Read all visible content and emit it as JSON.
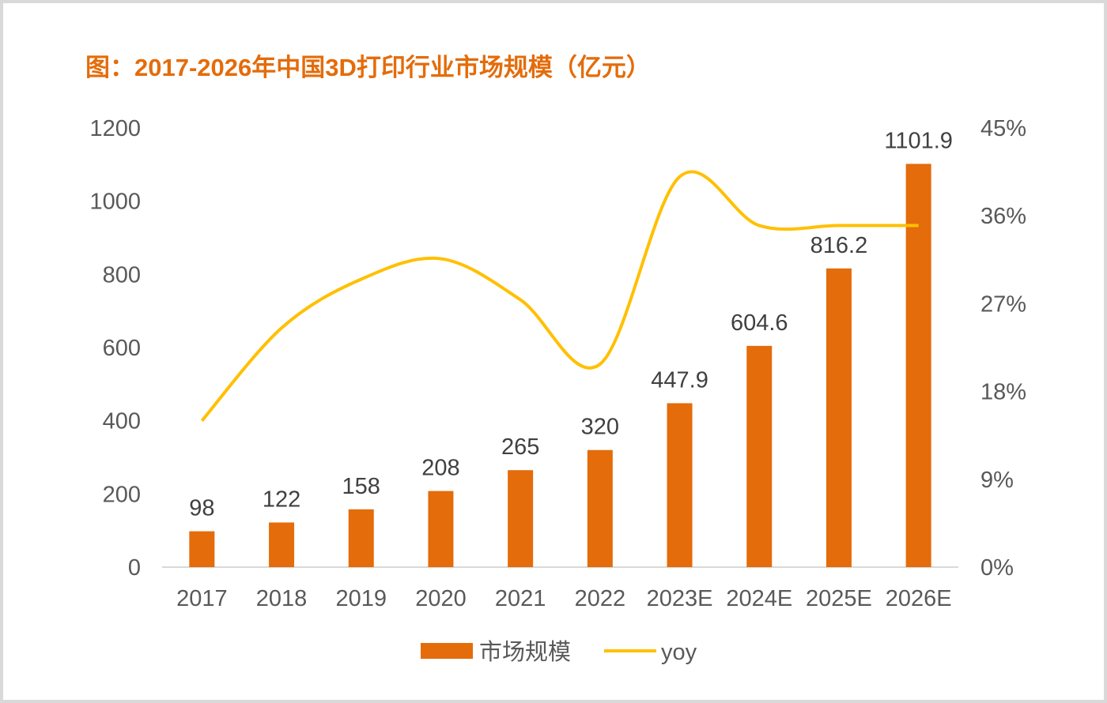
{
  "chart_data": {
    "type": "bar",
    "title": "图：2017-2026年中国3D打印行业市场规模（亿元）",
    "categories": [
      "2017",
      "2018",
      "2019",
      "2020",
      "2021",
      "2022",
      "2023E",
      "2024E",
      "2025E",
      "2026E"
    ],
    "series": [
      {
        "name": "市场规模",
        "type": "bar",
        "axis": "left",
        "color": "#E46C0A",
        "values": [
          98,
          122,
          158,
          208,
          265,
          320,
          447.9,
          604.6,
          816.2,
          1101.9
        ],
        "labels": [
          "98",
          "122",
          "158",
          "208",
          "265",
          "320",
          "447.9",
          "604.6",
          "816.2",
          "1101.9"
        ]
      },
      {
        "name": "yoy",
        "type": "line",
        "axis": "right",
        "color": "#FFC000",
        "values": [
          15.0,
          24.5,
          29.5,
          31.6,
          27.4,
          20.8,
          40.0,
          35.0,
          35.0,
          35.0
        ]
      }
    ],
    "yleft": {
      "ylim": [
        0,
        1200
      ],
      "ticks": [
        "0",
        "200",
        "400",
        "600",
        "800",
        "1000",
        "1200"
      ]
    },
    "yright": {
      "ylim": [
        0,
        45
      ],
      "ticks": [
        "0%",
        "9%",
        "18%",
        "27%",
        "36%",
        "45%"
      ]
    },
    "legend": {
      "position": "bottom",
      "entries": [
        "市场规模",
        "yoy"
      ]
    },
    "grid": false
  }
}
